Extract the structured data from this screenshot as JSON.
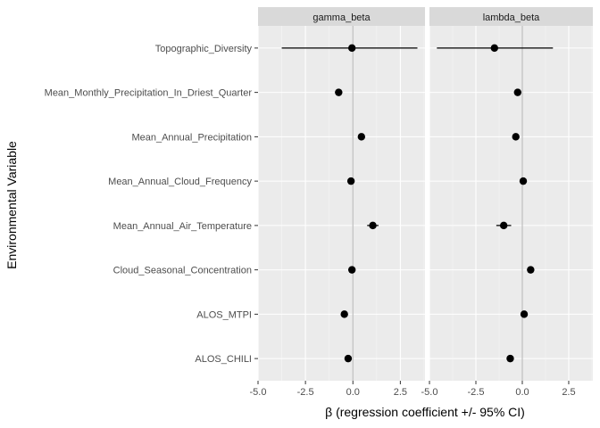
{
  "chart_data": {
    "type": "scatter",
    "subtype": "forest-plot-faceted",
    "xlabel": "β (regression coefficient +/- 95% CI)",
    "ylabel": "Environmental Variable",
    "variables": [
      "Topographic_Diversity",
      "Mean_Monthly_Precipitation_In_Driest_Quarter",
      "Mean_Annual_Precipitation",
      "Mean_Annual_Cloud_Frequency",
      "Mean_Annual_Air_Temperature",
      "Cloud_Seasonal_Concentration",
      "ALOS_MTPI",
      "ALOS_CHILI"
    ],
    "x_ticks": [
      -5.0,
      -2.5,
      0.0,
      2.5
    ],
    "x_tick_labels": [
      "-5.0",
      "-2.5",
      "0.0",
      "2.5"
    ],
    "xlim": [
      -5.0,
      3.8
    ],
    "reference_line": 0,
    "grid": true,
    "facets": [
      {
        "name": "gamma_beta",
        "points": [
          {
            "variable": "Topographic_Diversity",
            "estimate": -0.05,
            "lower": -3.75,
            "upper": 3.4
          },
          {
            "variable": "Mean_Monthly_Precipitation_In_Driest_Quarter",
            "estimate": -0.75,
            "lower": -0.85,
            "upper": -0.65
          },
          {
            "variable": "Mean_Annual_Precipitation",
            "estimate": 0.45,
            "lower": 0.35,
            "upper": 0.55
          },
          {
            "variable": "Mean_Annual_Cloud_Frequency",
            "estimate": -0.1,
            "lower": -0.2,
            "upper": 0.0
          },
          {
            "variable": "Mean_Annual_Air_Temperature",
            "estimate": 1.05,
            "lower": 0.75,
            "upper": 1.35
          },
          {
            "variable": "Cloud_Seasonal_Concentration",
            "estimate": -0.05,
            "lower": -0.15,
            "upper": 0.05
          },
          {
            "variable": "ALOS_MTPI",
            "estimate": -0.45,
            "lower": -0.55,
            "upper": -0.35
          },
          {
            "variable": "ALOS_CHILI",
            "estimate": -0.25,
            "lower": -0.35,
            "upper": -0.15
          }
        ]
      },
      {
        "name": "lambda_beta",
        "points": [
          {
            "variable": "Topographic_Diversity",
            "estimate": -1.5,
            "lower": -4.6,
            "upper": 1.65
          },
          {
            "variable": "Mean_Monthly_Precipitation_In_Driest_Quarter",
            "estimate": -0.25,
            "lower": -0.35,
            "upper": -0.15
          },
          {
            "variable": "Mean_Annual_Precipitation",
            "estimate": -0.35,
            "lower": -0.45,
            "upper": -0.25
          },
          {
            "variable": "Mean_Annual_Cloud_Frequency",
            "estimate": 0.05,
            "lower": -0.05,
            "upper": 0.15
          },
          {
            "variable": "Mean_Annual_Air_Temperature",
            "estimate": -1.0,
            "lower": -1.4,
            "upper": -0.6
          },
          {
            "variable": "Cloud_Seasonal_Concentration",
            "estimate": 0.45,
            "lower": 0.35,
            "upper": 0.55
          },
          {
            "variable": "ALOS_MTPI",
            "estimate": 0.1,
            "lower": 0.0,
            "upper": 0.2
          },
          {
            "variable": "ALOS_CHILI",
            "estimate": -0.65,
            "lower": -0.75,
            "upper": -0.55
          }
        ]
      }
    ],
    "colors": {
      "panel_bg": "#ebebeb",
      "grid_major": "#ffffff",
      "grid_minor": "#f5f5f5",
      "strip_bg": "#d9d9d9",
      "ref_line": "#bdbdbd",
      "point": "#000000",
      "tick": "#333333"
    }
  }
}
